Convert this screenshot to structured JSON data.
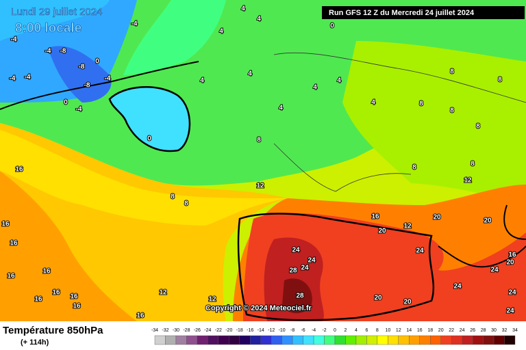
{
  "header": {
    "date": "Lundi 29 juillet 2024",
    "time": "8:00 locale",
    "run": "Run GFS 12 Z du Mercredi 24 juillet 2024"
  },
  "copyright": "Copyright © 2024 Meteociel.fr",
  "footer": {
    "title": "Température 850hPa",
    "lead": "(+ 114h)"
  },
  "contour_labels": [
    -4,
    4,
    4,
    4,
    0,
    -4,
    -4,
    -8,
    -8,
    -8,
    0,
    -4,
    -4,
    -4,
    0,
    -4,
    0,
    4,
    4,
    4,
    4,
    4,
    4,
    8,
    8,
    8,
    8,
    8,
    8,
    12,
    12,
    8,
    8,
    16,
    20,
    12,
    20,
    20,
    24,
    24,
    28,
    24,
    28,
    20,
    20,
    24,
    24,
    16,
    20,
    24,
    24,
    24,
    16,
    16,
    16,
    16,
    16,
    16,
    16,
    16,
    16,
    12,
    12,
    16,
    8,
    8
  ],
  "legend": {
    "values": [
      -34,
      -32,
      -30,
      -28,
      -26,
      -24,
      -22,
      -20,
      -18,
      -16,
      -14,
      -12,
      -10,
      -8,
      -6,
      -4,
      -2,
      0,
      2,
      4,
      6,
      8,
      10,
      12,
      14,
      16,
      18,
      20,
      22,
      24,
      26,
      28,
      30,
      32,
      34
    ],
    "colors": [
      "#d0d0d0",
      "#b0b0b0",
      "#a080a0",
      "#905090",
      "#702070",
      "#501060",
      "#400050",
      "#300040",
      "#200060",
      "#2020a0",
      "#3030d0",
      "#3060f0",
      "#3090ff",
      "#30c0ff",
      "#40e0ff",
      "#40ffe0",
      "#40ff80",
      "#30e030",
      "#60f000",
      "#a0f000",
      "#d0f000",
      "#ffff00",
      "#ffe000",
      "#ffc000",
      "#ffa000",
      "#ff8000",
      "#ff6000",
      "#f04020",
      "#e03020",
      "#c02020",
      "#a01010",
      "#801010",
      "#600000",
      "#200000"
    ]
  }
}
